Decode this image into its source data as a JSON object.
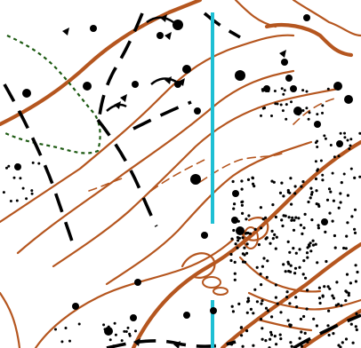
{
  "map": {
    "colors": {
      "background": "#ffffff",
      "contour": "#b5561f",
      "feature": "#000000",
      "vegetation": "#1d5a12",
      "north_line": "#1fbfd4"
    },
    "symbols": [
      "contour-line-symbol",
      "index-contour-symbol",
      "form-line-symbol",
      "track-symbol",
      "vegetation-boundary-symbol",
      "boulder-symbol",
      "stony-ground-symbol",
      "north-line-symbol",
      "cliff-symbol"
    ]
  }
}
